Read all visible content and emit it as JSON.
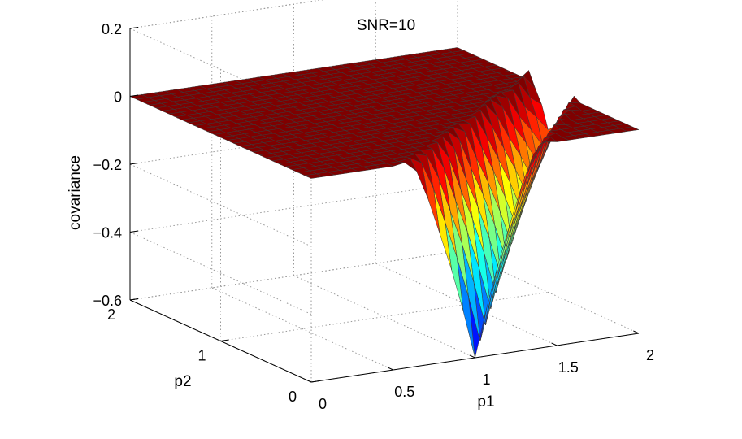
{
  "chart_data": {
    "type": "surface",
    "title": "SNR=10",
    "xlabel": "p1",
    "ylabel": "p2",
    "zlabel": "covariance",
    "xlim": [
      0,
      2
    ],
    "ylim": [
      0,
      2
    ],
    "zlim": [
      -0.6,
      0.2
    ],
    "xticks": [
      "0",
      "0.5",
      "1",
      "1.5",
      "2"
    ],
    "yticks": [
      "0",
      "1",
      "2"
    ],
    "zticks": [
      "−0.6",
      "−0.4",
      "−0.2",
      "0",
      "0.2"
    ],
    "grid": true,
    "colormap": "jet",
    "surface_summary": {
      "plateau_covariance": 0,
      "trough_min_covariance": -0.6,
      "trough_location": {
        "p1": 1,
        "p2": 0
      },
      "trough_ridge_max_covariance": 0.02
    }
  },
  "colors": {
    "plateau": "#7f0000",
    "mesh_edge": "#3a3a3a",
    "grid": "#9a9a9a"
  }
}
